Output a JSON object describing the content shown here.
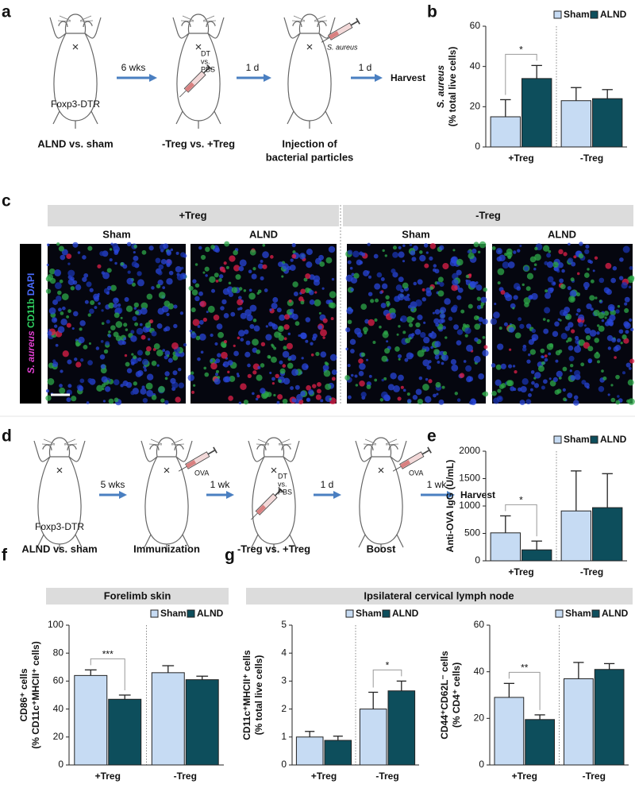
{
  "panel_labels": [
    "a",
    "b",
    "c",
    "d",
    "e",
    "f",
    "g"
  ],
  "panel_a": {
    "strain": "Foxp3-DTR",
    "steps": [
      "6 wks",
      "1 d",
      "1 d"
    ],
    "injection_1": [
      "DT",
      "vs.",
      "PBS"
    ],
    "injection_2": "S. aureus",
    "end": "Harvest",
    "captions": [
      "ALND vs. sham",
      "-Treg vs. +Treg",
      "Injection of",
      "bacterial particles"
    ]
  },
  "panel_c": {
    "groups": [
      "+Treg",
      "-Treg"
    ],
    "columns": [
      "Sham",
      "ALND",
      "Sham",
      "ALND"
    ],
    "stain": [
      "S. aureus",
      "CD11b",
      "DAPI"
    ]
  },
  "panel_d": {
    "strain": "Foxp3-DTR",
    "steps": [
      "5 wks",
      "1 wk",
      "1 d",
      "1 wk"
    ],
    "injection_1": "OVA",
    "injection_2": [
      "DT",
      "vs.",
      "PBS"
    ],
    "injection_3": "OVA",
    "end": "Harvest",
    "captions": [
      "ALND vs. sham",
      "Immunization",
      "-Treg vs. +Treg",
      "Boost"
    ]
  },
  "headers": [
    "Forelimb skin",
    "Ipsilateral cervical lymph node"
  ],
  "chart_data": [
    {
      "type": "bar",
      "y_label": [
        "S. aureus",
        "(% total live cells)"
      ],
      "categories": [
        "+Treg",
        "-Treg"
      ],
      "series": [
        {
          "name": "Sham",
          "color": "#c6dbf3",
          "values": [
            15,
            23
          ],
          "errors": [
            8.5,
            6.5
          ]
        },
        {
          "name": "ALND",
          "color": "#0d4e5c",
          "values": [
            34,
            24
          ],
          "errors": [
            6.5,
            4.5
          ]
        }
      ],
      "ylim": [
        0,
        60
      ],
      "yticks": [
        0,
        20,
        40,
        60
      ],
      "significance": [
        {
          "text": "*",
          "category": "+Treg"
        }
      ]
    },
    {
      "type": "bar",
      "y_label": [
        "Anti-OVA IgG (U/mL)"
      ],
      "categories": [
        "+Treg",
        "-Treg"
      ],
      "series": [
        {
          "name": "Sham",
          "color": "#c6dbf3",
          "values": [
            510,
            910
          ],
          "errors": [
            310,
            730
          ]
        },
        {
          "name": "ALND",
          "color": "#0d4e5c",
          "values": [
            200,
            970
          ],
          "errors": [
            160,
            620
          ]
        }
      ],
      "ylim": [
        0,
        2000
      ],
      "yticks": [
        0,
        500,
        1000,
        1500,
        2000
      ],
      "significance": [
        {
          "text": "*",
          "category": "+Treg"
        }
      ]
    },
    {
      "type": "bar",
      "y_label": [
        "CD86⁺ cells",
        "(% CD11c⁺MHCII⁺ cells)"
      ],
      "categories": [
        "+Treg",
        "-Treg"
      ],
      "series": [
        {
          "name": "Sham",
          "color": "#c6dbf3",
          "values": [
            64,
            66
          ],
          "errors": [
            4,
            5
          ]
        },
        {
          "name": "ALND",
          "color": "#0d4e5c",
          "values": [
            47,
            61
          ],
          "errors": [
            3,
            2.5
          ]
        }
      ],
      "ylim": [
        0,
        100
      ],
      "yticks": [
        0,
        20,
        40,
        60,
        80,
        100
      ],
      "significance": [
        {
          "text": "***",
          "category": "+Treg"
        }
      ]
    },
    {
      "type": "bar",
      "y_label": [
        "CD11c⁺MHCII⁺ cells",
        "(% total live cells)"
      ],
      "categories": [
        "+Treg",
        "-Treg"
      ],
      "series": [
        {
          "name": "Sham",
          "color": "#c6dbf3",
          "values": [
            1.0,
            2.0
          ],
          "errors": [
            0.2,
            0.6
          ]
        },
        {
          "name": "ALND",
          "color": "#0d4e5c",
          "values": [
            0.88,
            2.65
          ],
          "errors": [
            0.15,
            0.35
          ]
        }
      ],
      "ylim": [
        0,
        5
      ],
      "yticks": [
        0,
        1,
        2,
        3,
        4,
        5
      ],
      "significance": [
        {
          "text": "*",
          "category": "-Treg"
        }
      ]
    },
    {
      "type": "bar",
      "y_label": [
        "CD44⁺CD62L⁻ cells",
        "(% CD4⁺ cells)"
      ],
      "categories": [
        "+Treg",
        "-Treg"
      ],
      "series": [
        {
          "name": "Sham",
          "color": "#c6dbf3",
          "values": [
            29,
            37
          ],
          "errors": [
            6,
            7
          ]
        },
        {
          "name": "ALND",
          "color": "#0d4e5c",
          "values": [
            19.5,
            41
          ],
          "errors": [
            2,
            2.5
          ]
        }
      ],
      "ylim": [
        0,
        60
      ],
      "yticks": [
        0,
        20,
        40,
        60
      ],
      "significance": [
        {
          "text": "**",
          "category": "+Treg"
        }
      ]
    }
  ]
}
